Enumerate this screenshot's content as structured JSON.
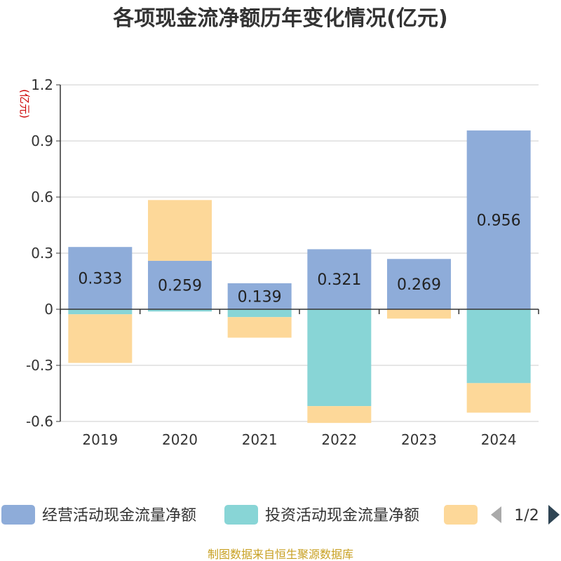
{
  "chart_data": {
    "type": "bar",
    "stacked": true,
    "title": "各项现金流净额历年变化情况(亿元)",
    "unit_label": "(亿元)",
    "categories": [
      "2019",
      "2020",
      "2021",
      "2022",
      "2023",
      "2024"
    ],
    "ylim": [
      -0.6,
      1.2
    ],
    "yticks": [
      "1.2",
      "0.9",
      "0.6",
      "0.3",
      "0",
      "-0.3",
      "-0.6"
    ],
    "grid": true,
    "legend_position": "bottom",
    "series": [
      {
        "name": "经营活动现金流量净额",
        "color": "#8eacd9",
        "values": [
          0.333,
          0.259,
          0.139,
          0.321,
          0.269,
          0.956
        ],
        "labels": [
          "0.333",
          "0.259",
          "0.139",
          "0.321",
          "0.269",
          "0.956"
        ]
      },
      {
        "name": "投资活动现金流量净额",
        "color": "#88d5d6",
        "values": [
          -0.027,
          -0.012,
          -0.042,
          -0.518,
          -0.002,
          -0.395
        ]
      },
      {
        "name": "",
        "color": "#fdd899",
        "values": [
          -0.26,
          0.325,
          -0.11,
          -0.09,
          -0.048,
          -0.158
        ]
      }
    ]
  },
  "legend": {
    "page_indicator": "1/2",
    "colors": {
      "arrow_prev": "#aaaaaa",
      "arrow_next": "#2f4554"
    }
  },
  "source": "制图数据来自恒生聚源数据库"
}
